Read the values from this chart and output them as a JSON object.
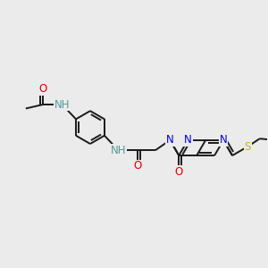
{
  "bg_color": "#ebebeb",
  "bond_color": "#1a1a1a",
  "bond_width": 1.4,
  "atom_colors": {
    "N": "#0000dd",
    "O": "#dd0000",
    "S": "#bbbb00",
    "NH": "#559999",
    "C": "#1a1a1a"
  },
  "font_size": 8.5,
  "fig_size": [
    3.0,
    3.0
  ],
  "dpi": 100,
  "xlim": [
    0,
    10
  ],
  "ylim": [
    0,
    10
  ]
}
